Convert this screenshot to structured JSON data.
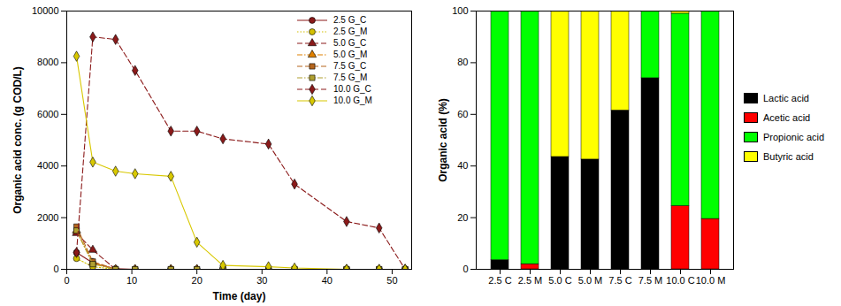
{
  "chart_data": [
    {
      "type": "line",
      "x_label": "Time (day)",
      "y_label": "Organic acid conc. (g COD/L)",
      "x": [
        1.5,
        4,
        7.5,
        10.5,
        16,
        20,
        24,
        31,
        35,
        43,
        48,
        52
      ],
      "series": [
        {
          "name": "2.5 G_C",
          "color": "#8b1a1a",
          "marker": "circle",
          "line_style": "solid",
          "values": [
            650,
            250,
            20,
            0,
            0,
            0,
            0,
            0,
            0,
            0,
            0,
            0
          ]
        },
        {
          "name": "2.5 G_M",
          "color": "#d4c000",
          "marker": "circle",
          "line_style": "dotted",
          "values": [
            420,
            100,
            0,
            0,
            0,
            0,
            0,
            0,
            0,
            0,
            0,
            0
          ]
        },
        {
          "name": "5.0 G_C",
          "color": "#8b1a1a",
          "marker": "triangle",
          "line_style": "dashed",
          "values": [
            1400,
            750,
            0,
            0,
            0,
            0,
            0,
            0,
            0,
            0,
            0,
            0
          ]
        },
        {
          "name": "5.0 G_M",
          "color": "#e08000",
          "marker": "triangle",
          "line_style": "dashdot",
          "values": [
            1500,
            250,
            0,
            0,
            0,
            0,
            0,
            0,
            0,
            0,
            0,
            0
          ]
        },
        {
          "name": "7.5 G_C",
          "color": "#b5651d",
          "marker": "square",
          "line_style": "dashed",
          "values": [
            1650,
            300,
            0,
            0,
            0,
            0,
            0,
            0,
            0,
            0,
            0,
            0
          ]
        },
        {
          "name": "7.5 G_M",
          "color": "#b0a030",
          "marker": "square",
          "line_style": "dashdot",
          "values": [
            1500,
            200,
            0,
            0,
            0,
            0,
            0,
            0,
            0,
            0,
            0,
            0
          ]
        },
        {
          "name": "10.0 G_C",
          "color": "#8b1a1a",
          "marker": "diamond",
          "line_style": "dashed",
          "values": [
            650,
            9000,
            8900,
            7700,
            5350,
            5350,
            5050,
            4850,
            3300,
            1850,
            1600,
            0
          ]
        },
        {
          "name": "10.0 G_M",
          "color": "#d8c800",
          "marker": "diamond",
          "line_style": "solid",
          "values": [
            8250,
            4150,
            3800,
            3700,
            3600,
            1050,
            150,
            100,
            50,
            0,
            0,
            0
          ]
        }
      ],
      "xlim": [
        0,
        53
      ],
      "xticks": [
        0,
        10,
        20,
        30,
        40,
        50
      ],
      "ylim": [
        0,
        10000
      ],
      "yticks": [
        0,
        2000,
        4000,
        6000,
        8000,
        10000
      ],
      "grid": false,
      "legend": "upper right"
    },
    {
      "type": "bar",
      "y_label": "Organic acid (%)",
      "categories": [
        "2.5 C",
        "2.5 M",
        "5.0 C",
        "5.0 M",
        "7.5 C",
        "7.5 M",
        "10.0 C",
        "10.0 M"
      ],
      "series": [
        {
          "name": "Lactic acid",
          "color": "#000000",
          "values": [
            3.5,
            0,
            43.5,
            42.5,
            61.5,
            74,
            0,
            0
          ]
        },
        {
          "name": "Acetic acid",
          "color": "#ff0000",
          "values": [
            0,
            2,
            0,
            0,
            0,
            0,
            24.5,
            19.5
          ]
        },
        {
          "name": "Propionic acid",
          "color": "#00ff00",
          "values": [
            96.5,
            98,
            0,
            0,
            0,
            26,
            74.5,
            80.5
          ]
        },
        {
          "name": "Butyric acid",
          "color": "#ffff00",
          "values": [
            0,
            0,
            56.5,
            57.5,
            38.5,
            0,
            1,
            0
          ]
        }
      ],
      "stacked": true,
      "ylim": [
        0,
        100
      ],
      "yticks": [
        0,
        20,
        40,
        60,
        80,
        100
      ],
      "grid": false,
      "legend": "right"
    }
  ]
}
